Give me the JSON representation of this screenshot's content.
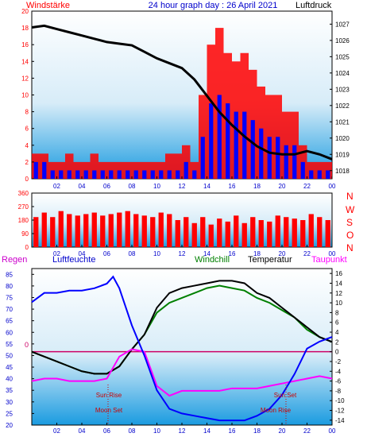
{
  "header": {
    "left": "Windstärke",
    "center": "24 hour graph day : 26 April 2021",
    "right": "Luftdruck"
  },
  "panel2_labels": [
    "N",
    "W",
    "S",
    "O",
    "N"
  ],
  "legend": {
    "regen": "Regen",
    "luftfeuchte": "Luftfeuchte",
    "windchill": "Windchill",
    "temperatur": "Temperatur",
    "taupunkt": "Taupunkt"
  },
  "astro": {
    "sun_rise": "Sun Rise",
    "moon_set": "Moon Set",
    "sun_set": "Sun Set",
    "moon_rise": "Moon Rise"
  },
  "colors": {
    "wind_gust": "#ff0000",
    "wind_avg": "#0000ff",
    "pressure": "#000000",
    "direction": "#ff0000",
    "humidity": "#0000ff",
    "temperature": "#000000",
    "windchill": "#008000",
    "dewpoint": "#ff00ff",
    "zero_line": "#cc0066"
  },
  "chart_data": [
    {
      "type": "bar",
      "series": [
        {
          "name": "Windstärke",
          "values_gust": [
            3,
            3,
            2,
            2,
            3,
            2,
            2,
            3,
            2,
            2,
            2,
            2,
            2,
            2,
            2,
            2,
            3,
            3,
            4,
            2,
            10,
            16,
            18,
            15,
            14,
            15,
            13,
            11,
            10,
            10,
            8,
            8,
            4,
            2,
            2,
            2
          ]
        },
        {
          "name": "Windstärke avg",
          "values_avg": [
            2,
            2,
            1,
            1,
            1,
            1,
            1,
            1,
            1,
            1,
            1,
            1,
            1,
            1,
            1,
            1,
            1,
            1,
            2,
            1,
            5,
            9,
            10,
            9,
            8,
            8,
            7,
            6,
            5,
            5,
            4,
            4,
            2,
            1,
            1,
            1
          ]
        }
      ],
      "x_ticks": [
        "02",
        "04",
        "06",
        "08",
        "10",
        "12",
        "14",
        "16",
        "18",
        "20",
        "22",
        "00"
      ],
      "y_left_ticks": [
        "0",
        "2",
        "4",
        "6",
        "8",
        "10",
        "12",
        "14",
        "16",
        "18",
        "20"
      ],
      "y_left_range": [
        0,
        20
      ],
      "y_right_ticks": [
        "1018",
        "1019",
        "1020",
        "1021",
        "1022",
        "1023",
        "1024",
        "1025",
        "1026",
        "1027"
      ],
      "y_right_range": [
        1017.5,
        1027.8
      ],
      "pressure": {
        "name": "Luftdruck",
        "x": [
          0,
          1,
          2,
          3,
          4,
          5,
          6,
          7,
          8,
          9,
          10,
          11,
          12,
          13,
          14,
          15,
          16,
          17,
          18,
          19,
          20,
          21,
          22,
          23,
          24
        ],
        "y": [
          1026.8,
          1026.9,
          1026.7,
          1026.5,
          1026.3,
          1026.1,
          1025.9,
          1025.8,
          1025.7,
          1025.3,
          1024.9,
          1024.6,
          1024.3,
          1023.6,
          1022.6,
          1021.6,
          1020.8,
          1020.1,
          1019.5,
          1019.1,
          1019.0,
          1019.0,
          1019.2,
          1019.0,
          1018.7
        ]
      }
    },
    {
      "type": "bar",
      "y_ticks": [
        "360",
        "270",
        "180",
        "90",
        "0"
      ],
      "y_range": [
        0,
        360
      ],
      "values": [
        200,
        230,
        200,
        240,
        220,
        210,
        220,
        230,
        210,
        220,
        230,
        240,
        220,
        210,
        200,
        230,
        220,
        180,
        200,
        160,
        200,
        150,
        190,
        170,
        210,
        160,
        200,
        180,
        170,
        210,
        200,
        190,
        180,
        220,
        200,
        180
      ],
      "x_ticks": [
        "02",
        "04",
        "06",
        "08",
        "10",
        "12",
        "14",
        "16",
        "18",
        "20",
        "22",
        "00"
      ]
    },
    {
      "type": "line",
      "x_ticks": [
        "02",
        "04",
        "06",
        "08",
        "10",
        "12",
        "14",
        "16",
        "18",
        "20",
        "22",
        "00"
      ],
      "y_left_ticks": [
        "20",
        "25",
        "30",
        "35",
        "40",
        "45",
        "50",
        "55",
        "60",
        "65",
        "70",
        "75",
        "80",
        "85"
      ],
      "y_left_range": [
        20,
        87.5
      ],
      "y_right_ticks": [
        "-14",
        "-12",
        "-10",
        "-8",
        "-6",
        "-4",
        "-2",
        "0",
        "2",
        "4",
        "6",
        "8",
        "10",
        "12",
        "14",
        "16"
      ],
      "y_right_range": [
        -15,
        17
      ],
      "zero_label": "0",
      "series": [
        {
          "name": "Luftfeuchte",
          "axis": "left",
          "x": [
            0,
            1,
            2,
            3,
            4,
            5,
            6,
            6.5,
            7,
            8,
            9,
            10,
            11,
            12,
            13,
            14,
            15,
            16,
            17,
            18,
            19,
            20,
            21,
            22,
            23,
            24
          ],
          "y": [
            73,
            77,
            77,
            78,
            78,
            79,
            81,
            84,
            79,
            63,
            50,
            35,
            27,
            25,
            24,
            23,
            22,
            22,
            22,
            24,
            27,
            33,
            42,
            53,
            56,
            58
          ]
        },
        {
          "name": "Temperatur",
          "axis": "right",
          "x": [
            0,
            1,
            2,
            3,
            4,
            5,
            6,
            7,
            8,
            9,
            10,
            11,
            12,
            13,
            14,
            15,
            16,
            17,
            18,
            19,
            20,
            21,
            22,
            23,
            24
          ],
          "y": [
            0,
            -1,
            -2,
            -3,
            -4,
            -4.5,
            -4.5,
            -3,
            0.5,
            3.5,
            9,
            12,
            13,
            13.5,
            14,
            14.5,
            14.5,
            14,
            12,
            11,
            9,
            7,
            5,
            3,
            2
          ]
        },
        {
          "name": "Windchill",
          "axis": "right",
          "x": [
            0,
            1,
            2,
            3,
            4,
            5,
            6,
            7,
            8,
            9,
            10,
            11,
            12,
            13,
            14,
            15,
            16,
            17,
            18,
            19,
            20,
            21,
            22,
            23,
            24
          ],
          "y": [
            0,
            -1,
            -2,
            -3,
            -4,
            -4.5,
            -4.5,
            -3,
            0.5,
            3.5,
            8,
            10,
            11,
            12,
            13,
            13.5,
            13,
            12.5,
            11,
            10,
            8.5,
            7,
            4.5,
            3,
            2
          ]
        },
        {
          "name": "Taupunkt",
          "axis": "right",
          "x": [
            0,
            1,
            2,
            3,
            4,
            5,
            6,
            7,
            8,
            9,
            10,
            11,
            12,
            13,
            14,
            15,
            16,
            17,
            18,
            19,
            20,
            21,
            22,
            23,
            24
          ],
          "y": [
            -6,
            -5.5,
            -5.5,
            -6,
            -6,
            -6,
            -5.5,
            -1,
            0.5,
            0,
            -7,
            -9,
            -8,
            -8,
            -8,
            -8,
            -7.5,
            -7.5,
            -7.5,
            -7,
            -6.5,
            -6,
            -5.5,
            -5,
            -5.5
          ]
        }
      ]
    }
  ]
}
